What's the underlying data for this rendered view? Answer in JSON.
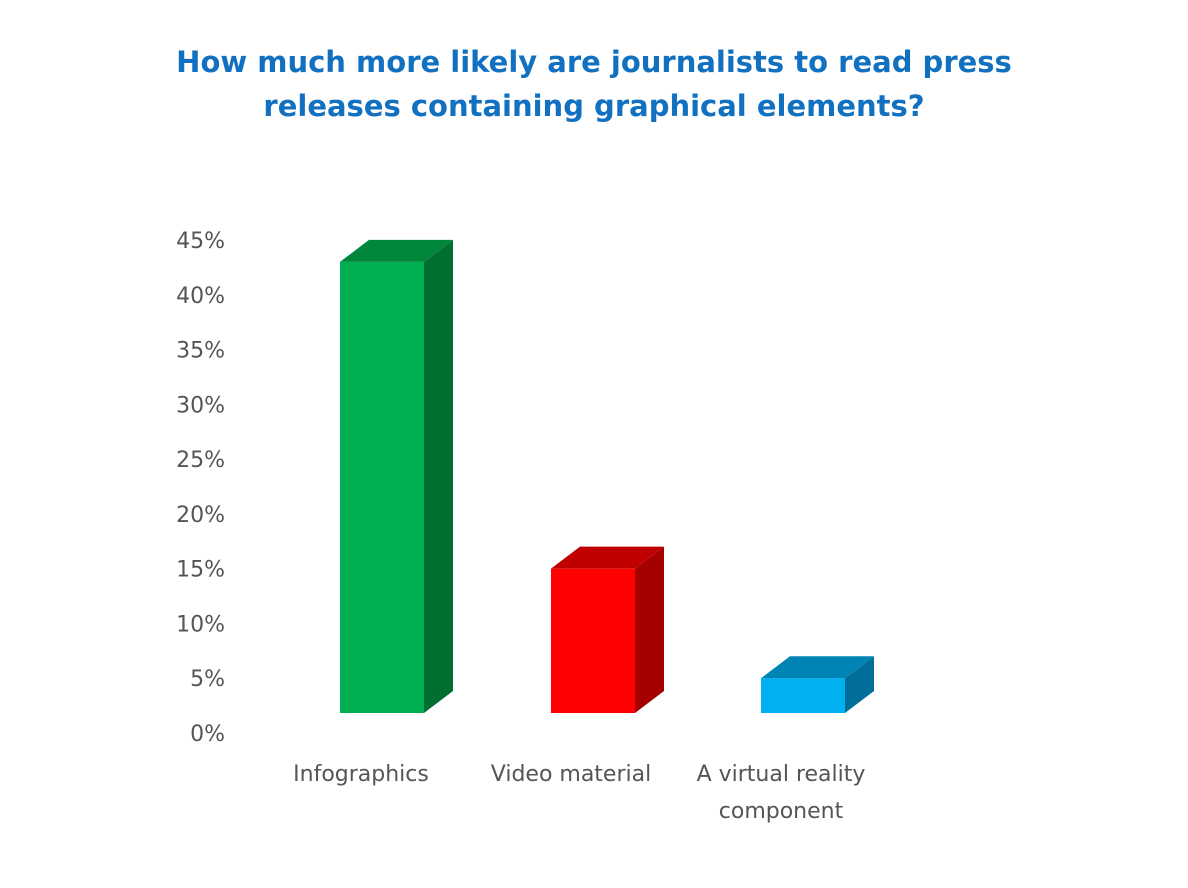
{
  "chart_data": {
    "type": "bar",
    "title": [
      "How much more likely are journalists to read press",
      "releases containing graphical elements?"
    ],
    "categories": [
      [
        "Infographics"
      ],
      [
        "Video material"
      ],
      [
        "A virtual reality",
        "component"
      ]
    ],
    "values": [
      43,
      15,
      5
    ],
    "ylim": [
      0,
      45
    ],
    "y_ticks": [
      "0%",
      "5%",
      "10%",
      "15%",
      "20%",
      "25%",
      "30%",
      "35%",
      "40%",
      "45%"
    ],
    "grid": false,
    "legend": "none",
    "style": "3d-column",
    "colors": [
      {
        "front": "#00b050",
        "side": "#006f31",
        "top": "#00873c"
      },
      {
        "front": "#ff0000",
        "side": "#a50000",
        "top": "#c00000"
      },
      {
        "front": "#00b0f0",
        "side": "#006d9a",
        "top": "#0083b5"
      }
    ],
    "title_color": "#1170c0",
    "label_color": "#555555"
  }
}
